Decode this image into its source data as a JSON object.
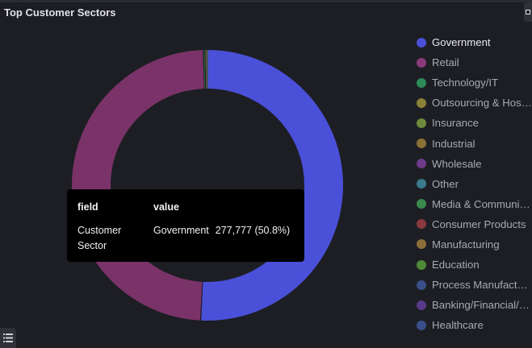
{
  "panel": {
    "title": "Top Customer Sectors",
    "menu_icon": "panel-menu-icon",
    "legend_toggle_icon": "list-icon"
  },
  "tooltip": {
    "header_field": "field",
    "header_value": "value",
    "field": "Customer Sector",
    "value_label": "Government",
    "value_number": "277,777 (50.8%)"
  },
  "legend": {
    "items": [
      {
        "label": "Government",
        "color": "#4a50d8",
        "active": true
      },
      {
        "label": "Retail",
        "color": "#8a3a7a"
      },
      {
        "label": "Technology/IT",
        "color": "#2f8a5a"
      },
      {
        "label": "Outsourcing & Hosti...",
        "color": "#8a8136"
      },
      {
        "label": "Insurance",
        "color": "#6e8a3a"
      },
      {
        "label": "Industrial",
        "color": "#8a7036"
      },
      {
        "label": "Wholesale",
        "color": "#6e3a8a"
      },
      {
        "label": "Other",
        "color": "#3a7a8a"
      },
      {
        "label": "Media & Communic...",
        "color": "#3a8a4e"
      },
      {
        "label": "Consumer Products",
        "color": "#8a3a3e"
      },
      {
        "label": "Manufacturing",
        "color": "#8a6e3a"
      },
      {
        "label": "Education",
        "color": "#4e8a36"
      },
      {
        "label": "Process Manufactur...",
        "color": "#3a4e8a"
      },
      {
        "label": "Banking/Financial/W...",
        "color": "#573a8a"
      },
      {
        "label": "Healthcare",
        "color": "#3a4f8a"
      }
    ]
  },
  "chart_data": {
    "type": "pie",
    "subtype": "donut",
    "title": "Top Customer Sectors",
    "categories": [
      "Government",
      "Retail",
      "Technology/IT",
      "Outsourcing & Hosting",
      "Insurance",
      "Industrial",
      "Wholesale",
      "Other",
      "Media & Communications",
      "Consumer Products",
      "Manufacturing",
      "Education",
      "Process Manufacturing",
      "Banking/Financial",
      "Healthcare"
    ],
    "values_percent": [
      50.8,
      48.7,
      0.2,
      0.05,
      0.05,
      0.04,
      0.03,
      0.03,
      0.02,
      0.02,
      0.02,
      0.01,
      0.01,
      0.01,
      0.01
    ],
    "known_values": {
      "Government": 277777
    },
    "colors": [
      "#4a50d8",
      "#7a3368",
      "#2f8a5a",
      "#8a8136",
      "#6e8a3a",
      "#8a7036",
      "#6e3a8a",
      "#3a7a8a",
      "#3a8a4e",
      "#8a3a3e",
      "#8a6e3a",
      "#4e8a36",
      "#3a4e8a",
      "#573a8a",
      "#3a4f8a"
    ],
    "legend_position": "right",
    "tooltip": {
      "field": "Customer Sector",
      "category": "Government",
      "value": "277,777",
      "percent": "50.8%"
    }
  }
}
